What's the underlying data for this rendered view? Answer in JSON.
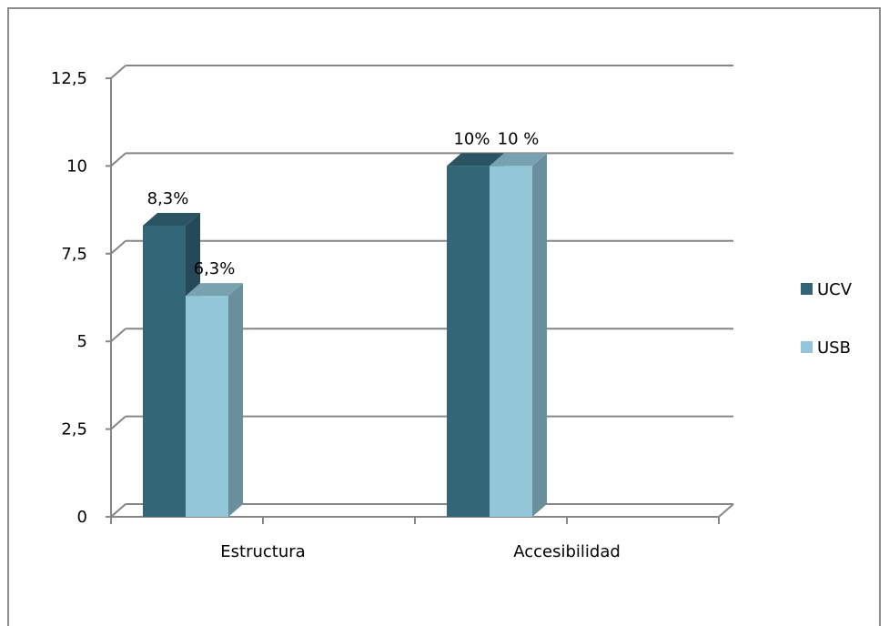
{
  "chart_data": {
    "type": "bar",
    "style": "3d-clustered-column",
    "categories": [
      "Estructura",
      "Accesibilidad"
    ],
    "series": [
      {
        "name": "UCV",
        "values": [
          8.3,
          10
        ],
        "data_labels": [
          "8,3%",
          "10%"
        ],
        "color": "#336677"
      },
      {
        "name": "USB",
        "values": [
          6.3,
          10
        ],
        "data_labels": [
          "6,3%",
          "10 %"
        ],
        "color": "#93c6d8"
      }
    ],
    "y_ticks": [
      "0",
      "2,5",
      "5",
      "7,5",
      "10",
      "12,5"
    ],
    "ylim": [
      0,
      12.5
    ],
    "grid": true,
    "legend": "right"
  }
}
